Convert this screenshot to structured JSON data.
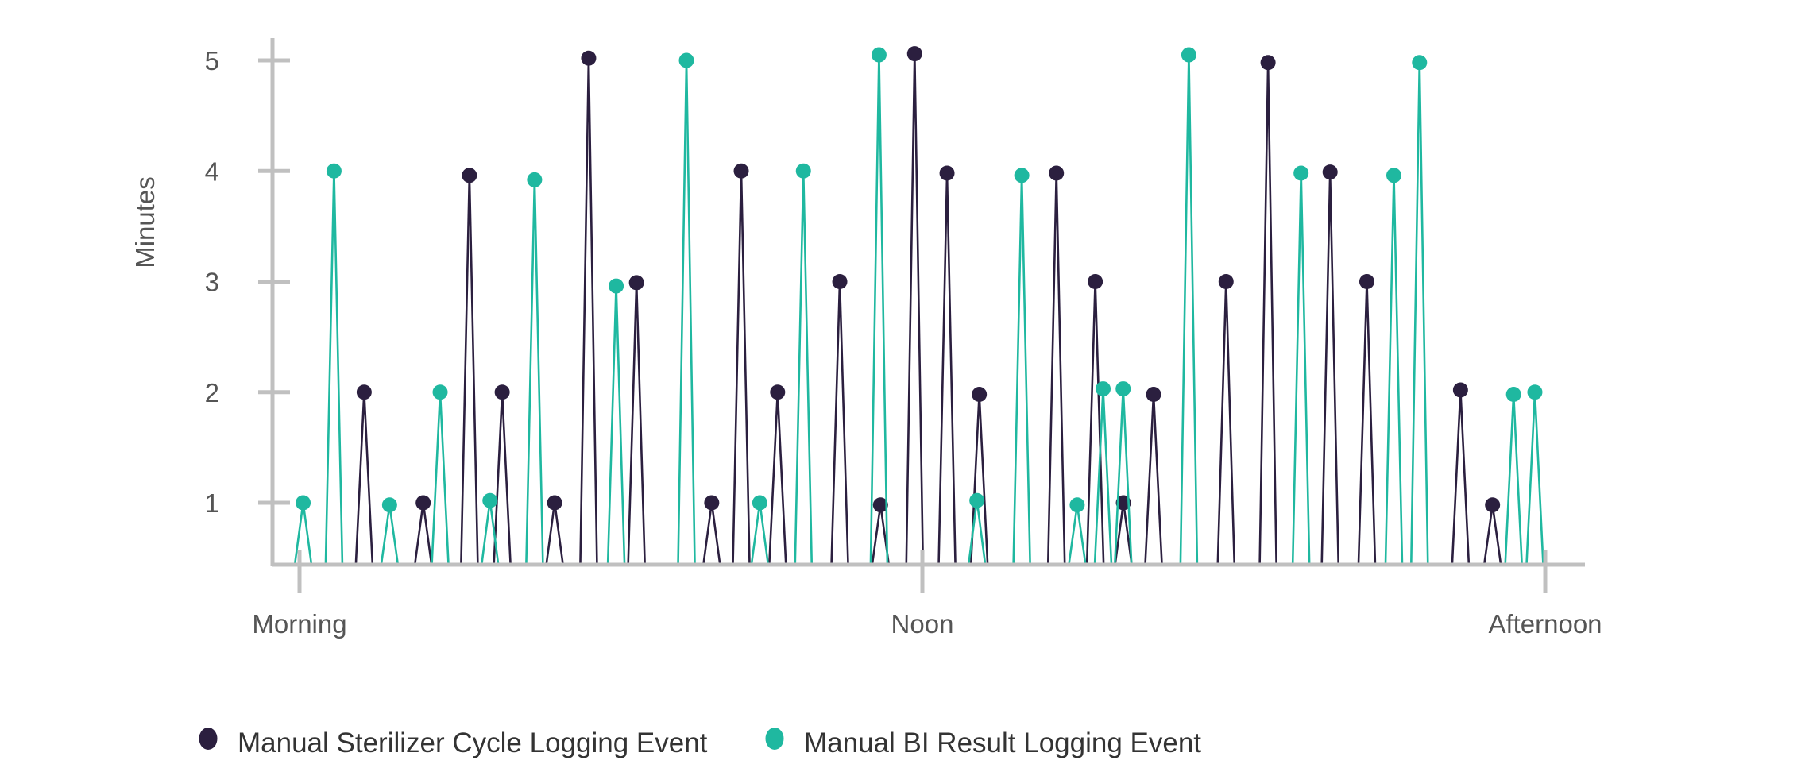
{
  "chart_data": {
    "type": "line",
    "title": "",
    "xlabel": "",
    "ylabel": "Minutes",
    "xlim": [
      0,
      1
    ],
    "ylim": [
      0.45,
      5.2
    ],
    "yticks": [
      1,
      2,
      3,
      4,
      5
    ],
    "x_tick_positions": [
      0,
      0.5,
      1
    ],
    "x_tick_labels": [
      "Morning",
      "Noon",
      "Afternoon"
    ],
    "grid": false,
    "legend_position": "bottom-left",
    "series": [
      {
        "name": "Manual Sterilizer Cycle Logging Event",
        "color": "#2b1f3f",
        "points": [
          [
            0.0519,
            2.0
          ],
          [
            0.0993,
            1.0
          ],
          [
            0.1364,
            3.96
          ],
          [
            0.1627,
            2.0
          ],
          [
            0.2048,
            1.0
          ],
          [
            0.2321,
            5.02
          ],
          [
            0.2705,
            2.99
          ],
          [
            0.3309,
            1.0
          ],
          [
            0.3546,
            4.0
          ],
          [
            0.3838,
            2.0
          ],
          [
            0.4337,
            3.0
          ],
          [
            0.4664,
            0.98
          ],
          [
            0.4938,
            5.06
          ],
          [
            0.5198,
            3.98
          ],
          [
            0.5457,
            1.98
          ],
          [
            0.6076,
            3.98
          ],
          [
            0.6388,
            3.0
          ],
          [
            0.6614,
            1.0
          ],
          [
            0.6856,
            1.98
          ],
          [
            0.7438,
            3.0
          ],
          [
            0.7775,
            4.98
          ],
          [
            0.8273,
            3.99
          ],
          [
            0.8568,
            3.0
          ],
          [
            0.932,
            2.02
          ],
          [
            0.9577,
            0.98
          ]
        ]
      },
      {
        "name": "Manual BI Result Logging Event",
        "color": "#1fb8a0",
        "points": [
          [
            0.0029,
            1.0
          ],
          [
            0.0277,
            4.0
          ],
          [
            0.0723,
            0.98
          ],
          [
            0.1129,
            2.0
          ],
          [
            0.1529,
            1.02
          ],
          [
            0.1887,
            3.92
          ],
          [
            0.2542,
            2.96
          ],
          [
            0.3106,
            5.0
          ],
          [
            0.3695,
            1.0
          ],
          [
            0.4045,
            4.0
          ],
          [
            0.4652,
            5.05
          ],
          [
            0.5438,
            1.02
          ],
          [
            0.5798,
            3.96
          ],
          [
            0.6243,
            0.98
          ],
          [
            0.6451,
            2.03
          ],
          [
            0.6612,
            2.03
          ],
          [
            0.7139,
            5.05
          ],
          [
            0.804,
            3.98
          ],
          [
            0.8785,
            3.96
          ],
          [
            0.8991,
            4.98
          ],
          [
            0.9746,
            1.98
          ],
          [
            0.9917,
            2.0
          ]
        ]
      }
    ]
  }
}
